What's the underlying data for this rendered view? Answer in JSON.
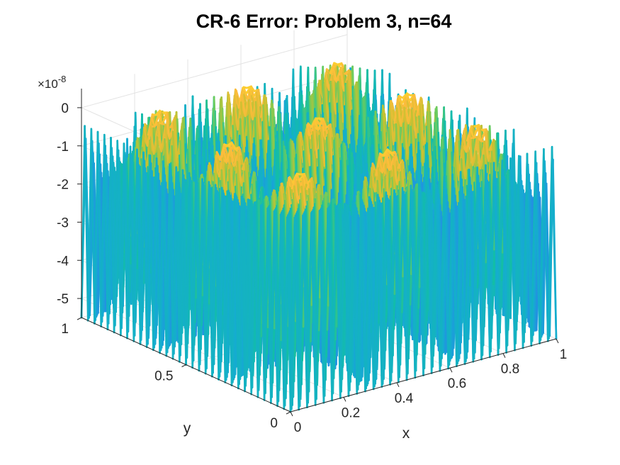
{
  "chart_data": {
    "type": "surface",
    "title": "CR-6 Error: Problem 3, n=64",
    "xlabel": "x",
    "ylabel": "y",
    "zlabel": "",
    "xlim": [
      0,
      1
    ],
    "ylim": [
      0,
      1
    ],
    "zlim": [
      -5.5,
      0.5
    ],
    "z_multiplier_label": "×10",
    "z_multiplier_exponent": "-8",
    "x_ticks": [
      "0",
      "0.2",
      "0.4",
      "0.6",
      "0.8",
      "1"
    ],
    "y_ticks": [
      "0",
      "0.5",
      "1"
    ],
    "z_ticks": [
      "-5",
      "-4",
      "-3",
      "-2",
      "-1",
      "0"
    ],
    "z_tick_values": [
      -5,
      -4,
      -3,
      -2,
      -1,
      0
    ],
    "x_tick_values": [
      0,
      0.2,
      0.4,
      0.6,
      0.8,
      1
    ],
    "y_tick_values": [
      0,
      0.5,
      1
    ],
    "n": 64,
    "mesh_lines_per_axis": 33,
    "peak_value": 0,
    "min_value": -5.5,
    "peaks_xy": [
      [
        0.17,
        0.5
      ],
      [
        0.5,
        0.83
      ],
      [
        0.5,
        0.5
      ],
      [
        0.83,
        0.5
      ],
      [
        0.5,
        0.17
      ]
    ],
    "colormap": "parula",
    "grid": true,
    "box": false
  }
}
